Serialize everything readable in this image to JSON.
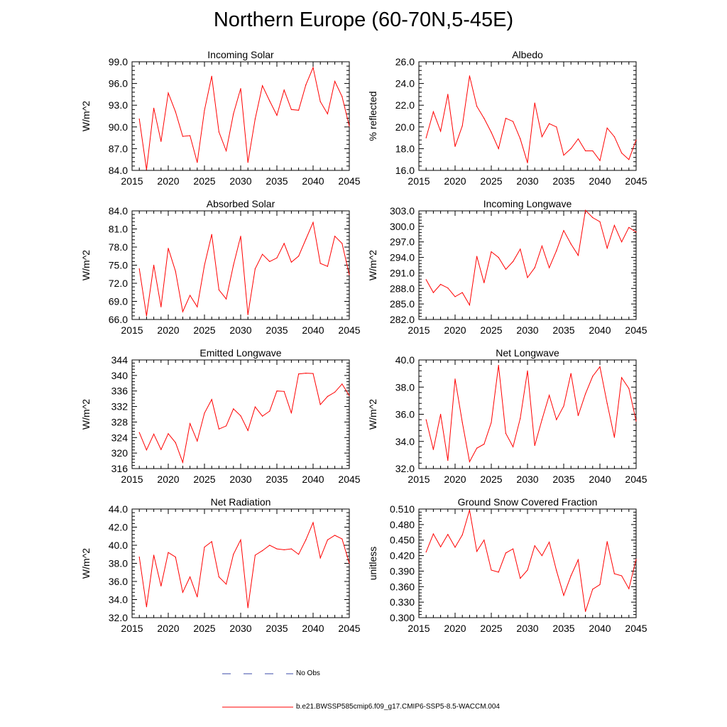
{
  "title": "Northern Europe (60-70N,5-45E)",
  "colors": {
    "series": "#ff0000",
    "obs": "#3b4ba8",
    "axis": "#000000"
  },
  "legend": {
    "obs_label": "No Obs",
    "model_label": "b.e21.BWSSP585cmip6.f09_g17.CMIP6-SSP5-8.5-WACCM.004"
  },
  "chart_data": [
    {
      "type": "line",
      "title": "Incoming Solar",
      "ylabel": "W/m^2",
      "xlim": [
        2015,
        2045
      ],
      "ylim": [
        84.0,
        99.0
      ],
      "xticks": [
        "2015",
        "2020",
        "2025",
        "2030",
        "2035",
        "2040",
        "2045"
      ],
      "yticks": [
        "84.0",
        "87.0",
        "90.0",
        "93.0",
        "96.0",
        "99.0"
      ],
      "x": [
        2016,
        2017,
        2018,
        2019,
        2020,
        2021,
        2022,
        2023,
        2024,
        2025,
        2026,
        2027,
        2028,
        2029,
        2030,
        2031,
        2032,
        2033,
        2034,
        2035,
        2036,
        2037,
        2038,
        2039,
        2040,
        2041,
        2042,
        2043,
        2044,
        2045
      ],
      "values": [
        91.1,
        84.1,
        92.6,
        88.0,
        94.7,
        92.1,
        88.7,
        88.8,
        85.1,
        92.3,
        97.0,
        89.3,
        86.7,
        91.8,
        95.3,
        85.1,
        91.1,
        95.7,
        93.6,
        91.6,
        95.1,
        92.4,
        92.3,
        95.8,
        98.2,
        93.5,
        91.8,
        96.3,
        94.2,
        90.1
      ]
    },
    {
      "type": "line",
      "title": "Albedo",
      "ylabel": "% reflected",
      "xlim": [
        2015,
        2045
      ],
      "ylim": [
        16.0,
        26.0
      ],
      "xticks": [
        "2015",
        "2020",
        "2025",
        "2030",
        "2035",
        "2040",
        "2045"
      ],
      "yticks": [
        "16.0",
        "18.0",
        "20.0",
        "22.0",
        "24.0",
        "26.0"
      ],
      "x": [
        2016,
        2017,
        2018,
        2019,
        2020,
        2021,
        2022,
        2023,
        2024,
        2025,
        2026,
        2027,
        2028,
        2029,
        2030,
        2031,
        2032,
        2033,
        2034,
        2035,
        2036,
        2037,
        2038,
        2039,
        2040,
        2041,
        2042,
        2043,
        2044,
        2045
      ],
      "values": [
        19.0,
        21.4,
        19.6,
        23.0,
        18.2,
        20.1,
        24.7,
        21.9,
        20.8,
        19.5,
        18.0,
        20.8,
        20.5,
        18.9,
        16.7,
        22.2,
        19.1,
        20.3,
        20.0,
        17.4,
        18.0,
        18.9,
        17.8,
        17.8,
        16.9,
        19.9,
        19.1,
        17.6,
        17.0,
        18.8
      ]
    },
    {
      "type": "line",
      "title": "Absorbed Solar",
      "ylabel": "W/m^2",
      "xlim": [
        2015,
        2045
      ],
      "ylim": [
        66.0,
        84.0
      ],
      "xticks": [
        "2015",
        "2020",
        "2025",
        "2030",
        "2035",
        "2040",
        "2045"
      ],
      "yticks": [
        "66.0",
        "69.0",
        "72.0",
        "75.0",
        "78.0",
        "81.0",
        "84.0"
      ],
      "x": [
        2016,
        2017,
        2018,
        2019,
        2020,
        2021,
        2022,
        2023,
        2024,
        2025,
        2026,
        2027,
        2028,
        2029,
        2030,
        2031,
        2032,
        2033,
        2034,
        2035,
        2036,
        2037,
        2038,
        2039,
        2040,
        2041,
        2042,
        2043,
        2044,
        2045
      ],
      "values": [
        74.4,
        66.6,
        75.0,
        68.1,
        77.8,
        74.0,
        67.3,
        70.0,
        68.1,
        75.0,
        80.1,
        70.9,
        69.4,
        75.0,
        79.8,
        66.8,
        74.4,
        76.8,
        75.6,
        76.2,
        78.6,
        75.5,
        76.5,
        79.3,
        82.1,
        75.3,
        74.8,
        79.8,
        78.6,
        73.4
      ]
    },
    {
      "type": "line",
      "title": "Incoming Longwave",
      "ylabel": "W/m^2",
      "xlim": [
        2015,
        2045
      ],
      "ylim": [
        282.0,
        303.0
      ],
      "xticks": [
        "2015",
        "2020",
        "2025",
        "2030",
        "2035",
        "2040",
        "2045"
      ],
      "yticks": [
        "282.0",
        "285.0",
        "288.0",
        "291.0",
        "294.0",
        "297.0",
        "300.0",
        "303.0"
      ],
      "x": [
        2016,
        2017,
        2018,
        2019,
        2020,
        2021,
        2022,
        2023,
        2024,
        2025,
        2026,
        2027,
        2028,
        2029,
        2030,
        2031,
        2032,
        2033,
        2034,
        2035,
        2036,
        2037,
        2038,
        2039,
        2040,
        2041,
        2042,
        2043,
        2044,
        2045
      ],
      "values": [
        289.7,
        287.2,
        288.8,
        288.1,
        286.4,
        287.2,
        284.8,
        294.2,
        289.1,
        295.1,
        294.0,
        291.7,
        293.2,
        295.6,
        290.1,
        292.0,
        296.2,
        292.0,
        295.3,
        299.2,
        296.6,
        294.4,
        303.1,
        301.7,
        300.9,
        295.8,
        300.2,
        297.0,
        299.8,
        298.9
      ]
    },
    {
      "type": "line",
      "title": "Emitted Longwave",
      "ylabel": "W/m^2",
      "xlim": [
        2015,
        2045
      ],
      "ylim": [
        316,
        344
      ],
      "xticks": [
        "2015",
        "2020",
        "2025",
        "2030",
        "2035",
        "2040",
        "2045"
      ],
      "yticks": [
        "316",
        "320",
        "324",
        "328",
        "332",
        "336",
        "340",
        "344"
      ],
      "x": [
        2016,
        2017,
        2018,
        2019,
        2020,
        2021,
        2022,
        2023,
        2024,
        2025,
        2026,
        2027,
        2028,
        2029,
        2030,
        2031,
        2032,
        2033,
        2034,
        2035,
        2036,
        2037,
        2038,
        2039,
        2040,
        2041,
        2042,
        2043,
        2044,
        2045
      ],
      "values": [
        325.3,
        320.8,
        324.9,
        320.9,
        325.0,
        322.7,
        317.6,
        327.6,
        323.1,
        330.3,
        333.8,
        326.2,
        327.0,
        331.4,
        329.6,
        325.8,
        331.9,
        329.5,
        330.8,
        336.0,
        335.9,
        330.3,
        340.4,
        340.6,
        340.5,
        332.5,
        334.6,
        335.7,
        337.8,
        334.8
      ]
    },
    {
      "type": "line",
      "title": "Net Longwave",
      "ylabel": "W/m^2",
      "xlim": [
        2015,
        2045
      ],
      "ylim": [
        32.0,
        40.0
      ],
      "xticks": [
        "2015",
        "2020",
        "2025",
        "2030",
        "2035",
        "2040",
        "2045"
      ],
      "yticks": [
        "32.0",
        "34.0",
        "36.0",
        "38.0",
        "40.0"
      ],
      "x": [
        2016,
        2017,
        2018,
        2019,
        2020,
        2021,
        2022,
        2023,
        2024,
        2025,
        2026,
        2027,
        2028,
        2029,
        2030,
        2031,
        2032,
        2033,
        2034,
        2035,
        2036,
        2037,
        2038,
        2039,
        2040,
        2041,
        2042,
        2043,
        2044,
        2045
      ],
      "values": [
        35.6,
        33.4,
        36.0,
        32.6,
        38.6,
        35.4,
        32.5,
        33.5,
        33.8,
        35.4,
        39.6,
        34.6,
        33.6,
        35.7,
        39.2,
        33.7,
        35.6,
        37.4,
        35.6,
        36.6,
        39.0,
        35.9,
        37.5,
        38.8,
        39.5,
        36.8,
        34.3,
        38.7,
        37.9,
        35.5
      ]
    },
    {
      "type": "line",
      "title": "Net Radiation",
      "ylabel": "W/m^2",
      "xlim": [
        2015,
        2045
      ],
      "ylim": [
        32.0,
        44.0
      ],
      "xticks": [
        "2015",
        "2020",
        "2025",
        "2030",
        "2035",
        "2040",
        "2045"
      ],
      "yticks": [
        "32.0",
        "34.0",
        "36.0",
        "38.0",
        "40.0",
        "42.0",
        "44.0"
      ],
      "x": [
        2016,
        2017,
        2018,
        2019,
        2020,
        2021,
        2022,
        2023,
        2024,
        2025,
        2026,
        2027,
        2028,
        2029,
        2030,
        2031,
        2032,
        2033,
        2034,
        2035,
        2036,
        2037,
        2038,
        2039,
        2040,
        2041,
        2042,
        2043,
        2044,
        2045
      ],
      "values": [
        38.7,
        33.2,
        38.9,
        35.5,
        39.2,
        38.7,
        34.8,
        36.5,
        34.3,
        39.8,
        40.4,
        36.5,
        35.7,
        39.0,
        40.6,
        33.1,
        38.9,
        39.4,
        40.0,
        39.6,
        39.5,
        39.6,
        39.0,
        40.6,
        42.5,
        38.6,
        40.6,
        41.1,
        40.7,
        38.0
      ]
    },
    {
      "type": "line",
      "title": "Ground Snow Covered Fraction",
      "ylabel": "unitless",
      "xlim": [
        2015,
        2045
      ],
      "ylim": [
        0.3,
        0.51
      ],
      "xticks": [
        "2015",
        "2020",
        "2025",
        "2030",
        "2035",
        "2040",
        "2045"
      ],
      "yticks": [
        "0.300",
        "0.330",
        "0.360",
        "0.390",
        "0.420",
        "0.450",
        "0.480",
        "0.510"
      ],
      "x": [
        2016,
        2017,
        2018,
        2019,
        2020,
        2021,
        2022,
        2023,
        2024,
        2025,
        2026,
        2027,
        2028,
        2029,
        2030,
        2031,
        2032,
        2033,
        2034,
        2035,
        2036,
        2037,
        2038,
        2039,
        2040,
        2041,
        2042,
        2043,
        2044,
        2045
      ],
      "values": [
        0.427,
        0.462,
        0.437,
        0.461,
        0.436,
        0.46,
        0.508,
        0.428,
        0.45,
        0.392,
        0.388,
        0.425,
        0.433,
        0.376,
        0.392,
        0.439,
        0.42,
        0.446,
        0.391,
        0.343,
        0.381,
        0.412,
        0.312,
        0.355,
        0.364,
        0.447,
        0.385,
        0.381,
        0.356,
        0.413
      ]
    }
  ]
}
